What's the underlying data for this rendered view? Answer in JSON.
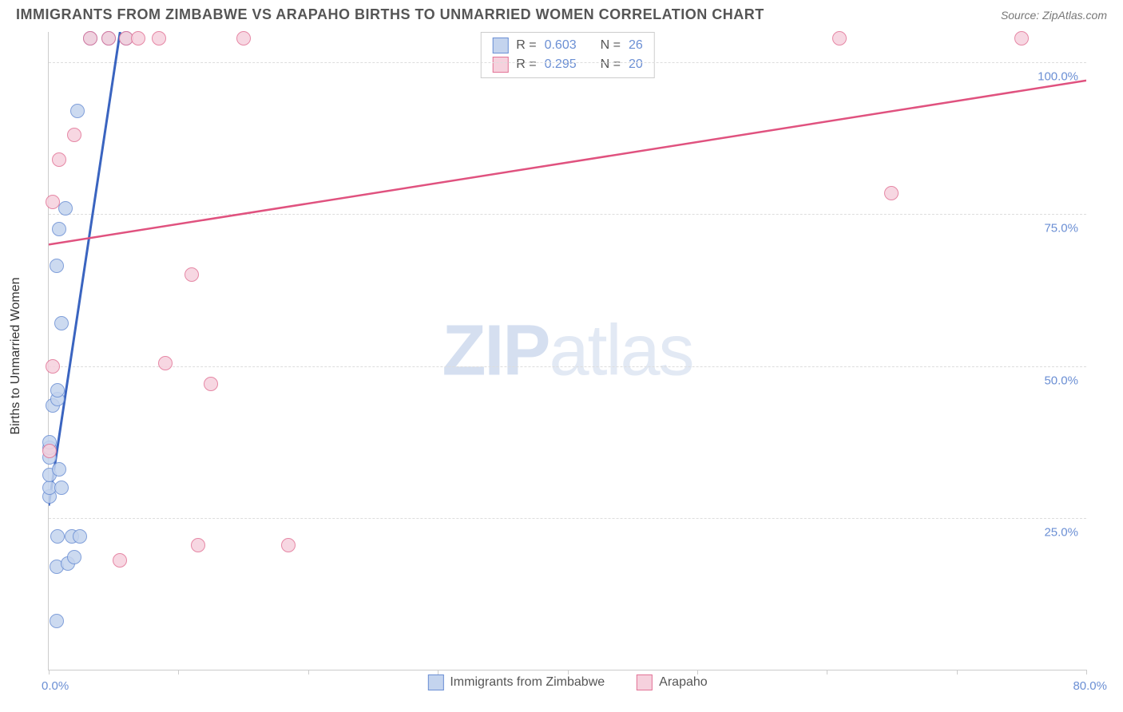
{
  "title": "IMMIGRANTS FROM ZIMBABWE VS ARAPAHO BIRTHS TO UNMARRIED WOMEN CORRELATION CHART",
  "source": "Source: ZipAtlas.com",
  "y_axis_label": "Births to Unmarried Women",
  "watermark_bold": "ZIP",
  "watermark_light": "atlas",
  "chart": {
    "type": "scatter",
    "xlim": [
      0,
      80
    ],
    "ylim": [
      0,
      105
    ],
    "x_ticks": [
      0,
      10,
      20,
      30,
      40,
      50,
      60,
      70,
      80
    ],
    "x_tick_labels": {
      "0": "0.0%",
      "80": "80.0%"
    },
    "y_gridlines": [
      25,
      50,
      75,
      100
    ],
    "y_tick_labels": {
      "25": "25.0%",
      "50": "50.0%",
      "75": "75.0%",
      "100": "100.0%"
    },
    "background_color": "#ffffff",
    "grid_color": "#dddddd",
    "axis_color": "#cccccc",
    "tick_label_color": "#6b8fd4",
    "marker_radius": 9,
    "marker_stroke_width": 1.5,
    "marker_fill_opacity": 0.25
  },
  "series": [
    {
      "name": "Immigrants from Zimbabwe",
      "color_stroke": "#6b8fd4",
      "color_fill": "#c4d4ee",
      "R_label": "R =",
      "R": "0.603",
      "N_label": "N =",
      "N": "26",
      "trend": {
        "x1": 0,
        "y1": 27,
        "x2": 5.5,
        "y2": 105,
        "stroke": "#3a64c0",
        "width": 3
      },
      "points": [
        {
          "x": 0.6,
          "y": 8
        },
        {
          "x": 0.6,
          "y": 17
        },
        {
          "x": 1.5,
          "y": 17.5
        },
        {
          "x": 2.0,
          "y": 18.5
        },
        {
          "x": 0.7,
          "y": 22
        },
        {
          "x": 1.8,
          "y": 22
        },
        {
          "x": 2.4,
          "y": 22
        },
        {
          "x": 0.05,
          "y": 28.5
        },
        {
          "x": 0.05,
          "y": 30
        },
        {
          "x": 1.0,
          "y": 30
        },
        {
          "x": 0.05,
          "y": 32
        },
        {
          "x": 0.8,
          "y": 33
        },
        {
          "x": 0.05,
          "y": 35
        },
        {
          "x": 0.05,
          "y": 36.5
        },
        {
          "x": 0.05,
          "y": 37.5
        },
        {
          "x": 0.3,
          "y": 43.5
        },
        {
          "x": 0.7,
          "y": 44.5
        },
        {
          "x": 0.7,
          "y": 46
        },
        {
          "x": 1.0,
          "y": 57
        },
        {
          "x": 0.6,
          "y": 66.5
        },
        {
          "x": 0.8,
          "y": 72.5
        },
        {
          "x": 1.3,
          "y": 76
        },
        {
          "x": 2.2,
          "y": 92
        },
        {
          "x": 3.2,
          "y": 104
        },
        {
          "x": 4.6,
          "y": 104
        },
        {
          "x": 6.0,
          "y": 104
        }
      ]
    },
    {
      "name": "Arapaho",
      "color_stroke": "#e27396",
      "color_fill": "#f6d1dd",
      "R_label": "R =",
      "R": "0.295",
      "N_label": "N =",
      "N": "20",
      "trend": {
        "x1": 0,
        "y1": 70,
        "x2": 80,
        "y2": 97,
        "stroke": "#e0527f",
        "width": 2.5
      },
      "points": [
        {
          "x": 5.5,
          "y": 18
        },
        {
          "x": 11.5,
          "y": 20.5
        },
        {
          "x": 18.5,
          "y": 20.5
        },
        {
          "x": 0.05,
          "y": 36
        },
        {
          "x": 12.5,
          "y": 47
        },
        {
          "x": 0.3,
          "y": 50
        },
        {
          "x": 9.0,
          "y": 50.5
        },
        {
          "x": 11.0,
          "y": 65
        },
        {
          "x": 0.3,
          "y": 77
        },
        {
          "x": 65.0,
          "y": 78.5
        },
        {
          "x": 0.8,
          "y": 84
        },
        {
          "x": 2.0,
          "y": 88
        },
        {
          "x": 3.2,
          "y": 104
        },
        {
          "x": 4.6,
          "y": 104
        },
        {
          "x": 6.0,
          "y": 104
        },
        {
          "x": 6.9,
          "y": 104
        },
        {
          "x": 8.5,
          "y": 104
        },
        {
          "x": 15.0,
          "y": 104
        },
        {
          "x": 61.0,
          "y": 104
        },
        {
          "x": 75.0,
          "y": 104
        }
      ]
    }
  ],
  "legend_bottom": [
    {
      "label": "Immigrants from Zimbabwe",
      "stroke": "#6b8fd4",
      "fill": "#c4d4ee"
    },
    {
      "label": "Arapaho",
      "stroke": "#e27396",
      "fill": "#f6d1dd"
    }
  ]
}
